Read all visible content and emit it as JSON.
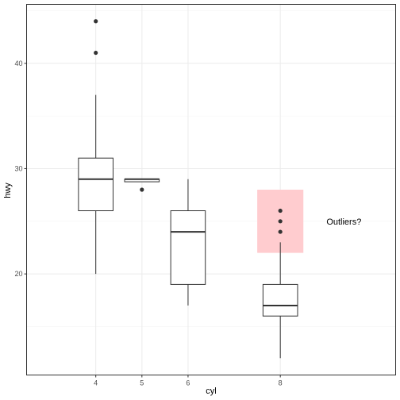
{
  "chart_data": {
    "type": "boxplot",
    "xlabel": "cyl",
    "ylabel": "hwy",
    "x_axis": {
      "min": 2.5,
      "max": 10.5,
      "ticks": [
        4,
        5,
        6,
        8
      ],
      "tick_labels": [
        "4",
        "5",
        "6",
        "8"
      ]
    },
    "y_axis": {
      "min": 10.4,
      "max": 45.6,
      "major_ticks": [
        20,
        30,
        40
      ],
      "tick_labels": [
        "20",
        "30",
        "40"
      ],
      "minor_ticks": [
        15,
        25,
        35,
        45
      ]
    },
    "grid": true,
    "boxes": [
      {
        "x": 4,
        "lower_whisker": 20,
        "q1": 26,
        "median": 29,
        "q3": 31,
        "upper_whisker": 37,
        "outliers": [
          41,
          44
        ]
      },
      {
        "x": 5,
        "lower_whisker": 28.75,
        "q1": 28.75,
        "median": 29,
        "q3": 29,
        "upper_whisker": 29,
        "outliers": [
          28
        ]
      },
      {
        "x": 6,
        "lower_whisker": 17,
        "q1": 19,
        "median": 24,
        "q3": 26,
        "upper_whisker": 29,
        "outliers": []
      },
      {
        "x": 8,
        "lower_whisker": 12,
        "q1": 16,
        "median": 17,
        "q3": 19,
        "upper_whisker": 23,
        "outliers": [
          24,
          25,
          26
        ]
      }
    ],
    "annotations": [
      {
        "type": "rect",
        "xmin": 7.5,
        "xmax": 8.5,
        "ymin": 22,
        "ymax": 28,
        "fill": "#ffcccf"
      },
      {
        "type": "text",
        "label": "Outliers?",
        "x": 9.0,
        "y": 25
      }
    ],
    "colors": {
      "panel_border": "#333333",
      "grid_major": "#ebebeb",
      "grid_minor": "#f5f5f5",
      "box_line": "#333333",
      "highlight": "#ffcccf"
    }
  }
}
